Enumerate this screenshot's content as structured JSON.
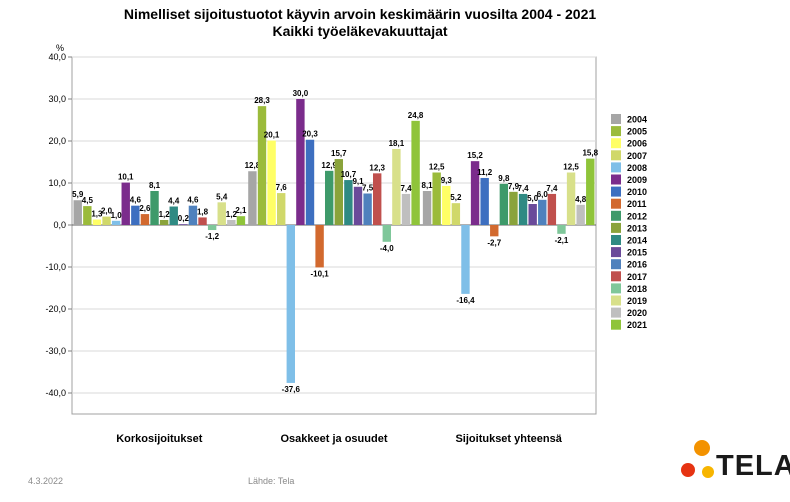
{
  "chart_data": {
    "type": "bar",
    "title": "Nimelliset sijoitustuotot käyvin arvoin keskimäärin vuosilta 2004 - 2021",
    "subtitle": "Kaikki työeläkevakuuttajat",
    "ylabel": "%",
    "ylim": [
      -45,
      40
    ],
    "yticks": [
      "40,0",
      "30,0",
      "20,0",
      "10,0",
      "0,0",
      "-10,0",
      "-20,0",
      "-30,0",
      "-40,0"
    ],
    "grid": true,
    "legend_position": "right",
    "categories": [
      "Korkosijoitukset",
      "Osakkeet ja osuudet",
      "Sijoitukset yhteensä"
    ],
    "series": [
      {
        "name": "2004",
        "color": "#a6a6a6",
        "values": [
          5.9,
          12.8,
          8.1
        ],
        "labels": [
          "5,9",
          "12,8",
          "8,1"
        ]
      },
      {
        "name": "2005",
        "color": "#9bbb3b",
        "values": [
          4.5,
          28.3,
          12.5
        ],
        "labels": [
          "4,5",
          "28,3",
          "12,5"
        ]
      },
      {
        "name": "2006",
        "color": "#ffff66",
        "values": [
          1.3,
          20.1,
          9.3
        ],
        "labels": [
          "1,3",
          "20,1",
          "9,3"
        ]
      },
      {
        "name": "2007",
        "color": "#d0d86a",
        "values": [
          2.0,
          7.6,
          5.2
        ],
        "labels": [
          "2,0",
          "7,6",
          "5,2"
        ]
      },
      {
        "name": "2008",
        "color": "#7fbfe8",
        "values": [
          1.0,
          -37.6,
          -16.4
        ],
        "labels": [
          "1,0",
          "-37,6",
          "-16,4"
        ]
      },
      {
        "name": "2009",
        "color": "#7b2c8c",
        "values": [
          10.1,
          30.0,
          15.2
        ],
        "labels": [
          "10,1",
          "30,0",
          "15,2"
        ]
      },
      {
        "name": "2010",
        "color": "#3d6fc0",
        "values": [
          4.6,
          20.3,
          11.2
        ],
        "labels": [
          "4,6",
          "20,3",
          "11,2"
        ]
      },
      {
        "name": "2011",
        "color": "#d2692e",
        "values": [
          2.6,
          -10.1,
          -2.7
        ],
        "labels": [
          "2,6",
          "-10,1",
          "-2,7"
        ]
      },
      {
        "name": "2012",
        "color": "#3e9a6a",
        "values": [
          8.1,
          12.9,
          9.8
        ],
        "labels": [
          "8,1",
          "12,9",
          "9,8"
        ]
      },
      {
        "name": "2013",
        "color": "#8aa33b",
        "values": [
          1.2,
          15.7,
          7.9
        ],
        "labels": [
          "1,2",
          "15,7",
          "7,9"
        ]
      },
      {
        "name": "2014",
        "color": "#2f8a83",
        "values": [
          4.4,
          10.7,
          7.4
        ],
        "labels": [
          "4,4",
          "10,7",
          "7,4"
        ]
      },
      {
        "name": "2015",
        "color": "#6a4a9a",
        "values": [
          0.2,
          9.1,
          5.0
        ],
        "labels": [
          "0,2",
          "9,1",
          "5,0"
        ]
      },
      {
        "name": "2016",
        "color": "#4f81bd",
        "values": [
          4.6,
          7.5,
          6.0
        ],
        "labels": [
          "4,6",
          "7,5",
          "6,0"
        ]
      },
      {
        "name": "2017",
        "color": "#c0504d",
        "values": [
          1.8,
          12.3,
          7.4
        ],
        "labels": [
          "1,8",
          "12,3",
          "7,4"
        ]
      },
      {
        "name": "2018",
        "color": "#7fc79a",
        "values": [
          -1.2,
          -4.0,
          -2.1
        ],
        "labels": [
          "-1,2",
          "-4,0",
          "-2,1"
        ]
      },
      {
        "name": "2019",
        "color": "#d8e08a",
        "values": [
          5.4,
          18.1,
          12.5
        ],
        "labels": [
          "5,4",
          "18,1",
          "12,5"
        ]
      },
      {
        "name": "2020",
        "color": "#bfbfbf",
        "values": [
          1.2,
          7.4,
          4.8
        ],
        "labels": [
          "1,2",
          "7,4",
          "4,8"
        ]
      },
      {
        "name": "2021",
        "color": "#8fc43a",
        "values": [
          2.1,
          24.8,
          15.8
        ],
        "labels": [
          "2,1",
          "24,8",
          "15,8"
        ]
      }
    ]
  },
  "footer": {
    "date": "4.3.2022",
    "source": "Lähde: Tela"
  },
  "logo": {
    "text": "TELA",
    "dot_colors": [
      "#f39200",
      "#e63312",
      "#f7b500"
    ]
  }
}
